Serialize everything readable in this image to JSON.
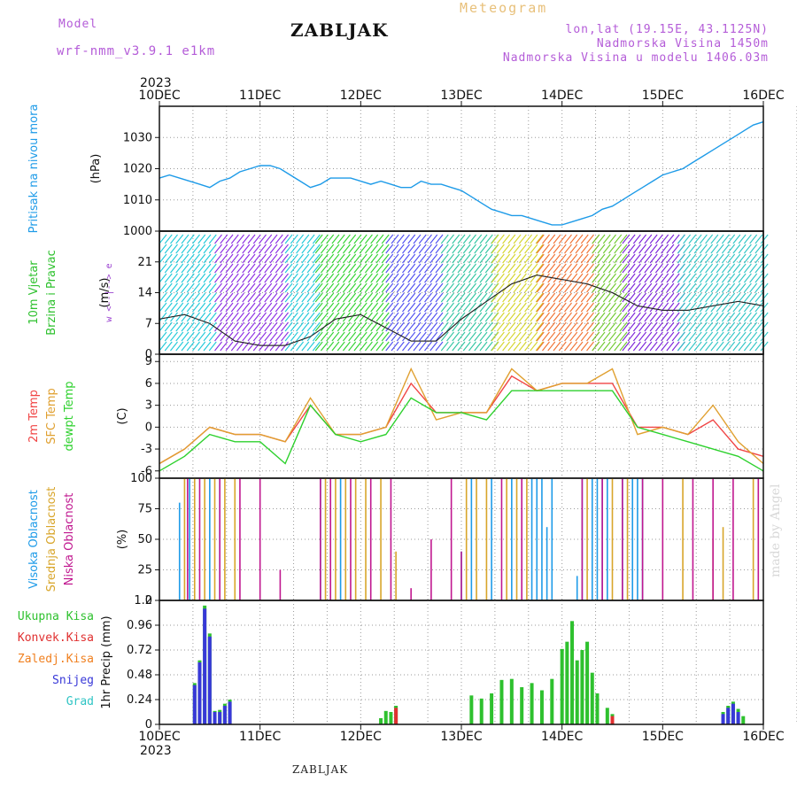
{
  "header": {
    "model_label": "Model",
    "model_name": "wrf-nmm_v3.9.1 e1km",
    "station": "ZABLJAK",
    "product": "Meteogram",
    "location": "lon,lat (19.15E, 43.1125N)",
    "elevation": "Nadmorska Visina 1450m",
    "model_elevation": "Nadmorska Visina u modelu 1406.03m",
    "credit": "made by Angel",
    "footer_station": "ZABLJAK"
  },
  "colors": {
    "pressure": "#1e9be8",
    "temp2m": "#f04545",
    "sfc": "#e0a030",
    "dewpt": "#2ed12e",
    "high_cloud": "#1e9be8",
    "mid_cloud": "#d8a52a",
    "low_cloud": "#c0178f",
    "precip_total": "#2ec12e",
    "precip_conv": "#e03030",
    "precip_ice": "#f08020",
    "precip_snow": "#3838d8",
    "precip_grad": "#2ec4c4"
  },
  "chart_data": [
    {
      "panel": "pressure",
      "type": "line",
      "year": "2023",
      "x_tick_labels": [
        "10DEC",
        "11DEC",
        "12DEC",
        "13DEC",
        "14DEC",
        "15DEC",
        "16DEC"
      ],
      "ylabel_lines": [
        "Pritisak na nivou mora",
        "(hPa)"
      ],
      "ylim": [
        1000,
        1040
      ],
      "yticks": [
        1000,
        1010,
        1020,
        1030
      ],
      "grid": true,
      "series": [
        {
          "x": [
            0,
            0.1,
            0.2,
            0.3,
            0.4,
            0.5,
            0.6,
            0.7,
            0.8,
            0.9,
            1.0,
            1.1,
            1.2,
            1.3,
            1.4,
            1.5,
            1.6,
            1.7,
            1.8,
            1.9,
            2.0,
            2.1,
            2.2,
            2.3,
            2.4,
            2.5,
            2.6,
            2.7,
            2.8,
            2.9,
            3.0,
            3.1,
            3.2,
            3.3,
            3.4,
            3.5,
            3.6,
            3.7,
            3.8,
            3.9,
            4.0,
            4.1,
            4.2,
            4.3,
            4.4,
            4.5,
            4.6,
            4.7,
            4.8,
            4.9,
            5.0,
            5.1,
            5.2,
            5.3,
            5.4,
            5.5,
            5.6,
            5.7,
            5.8,
            5.9,
            6.0
          ],
          "y": [
            1017,
            1018,
            1017,
            1016,
            1015,
            1014,
            1016,
            1017,
            1019,
            1020,
            1021,
            1021,
            1020,
            1018,
            1016,
            1014,
            1015,
            1017,
            1017,
            1017,
            1016,
            1015,
            1016,
            1015,
            1014,
            1014,
            1016,
            1015,
            1015,
            1014,
            1013,
            1011,
            1009,
            1007,
            1006,
            1005,
            1005,
            1004,
            1003,
            1002,
            1002,
            1003,
            1004,
            1005,
            1007,
            1008,
            1010,
            1012,
            1014,
            1016,
            1018,
            1019,
            1020,
            1022,
            1024,
            1026,
            1028,
            1030,
            1032,
            1034,
            1035
          ]
        }
      ]
    },
    {
      "panel": "wind",
      "type": "line",
      "ylabel_lines": [
        "10m Vjetar",
        "Brzina i Pravac",
        "(m/s)"
      ],
      "direction_legend": "w <--|--> e",
      "ylim": [
        0,
        28
      ],
      "yticks": [
        0,
        7,
        14,
        21
      ],
      "grid": true,
      "series": [
        {
          "name": "brzina",
          "x": [
            0,
            0.25,
            0.5,
            0.75,
            1.0,
            1.25,
            1.5,
            1.75,
            2.0,
            2.25,
            2.5,
            2.75,
            3.0,
            3.25,
            3.5,
            3.75,
            4.0,
            4.25,
            4.5,
            4.75,
            5.0,
            5.25,
            5.5,
            5.75,
            6.0
          ],
          "y": [
            8,
            9,
            7,
            3,
            2,
            2,
            4,
            8,
            9,
            6,
            3,
            3,
            8,
            12,
            16,
            18,
            17,
            16,
            14,
            11,
            10,
            10,
            11,
            12,
            11
          ]
        }
      ]
    },
    {
      "panel": "temperature",
      "type": "line",
      "ylabel_lines": [
        "2m Temp",
        "SFC Temp",
        "dewpt Temp",
        "(C)"
      ],
      "ylim": [
        -7,
        10
      ],
      "yticks": [
        -6,
        -3,
        0,
        3,
        6,
        9
      ],
      "grid": true,
      "series": [
        {
          "key": "temp2m",
          "x": [
            0,
            0.25,
            0.5,
            0.75,
            1.0,
            1.25,
            1.5,
            1.75,
            2.0,
            2.25,
            2.5,
            2.75,
            3.0,
            3.25,
            3.5,
            3.75,
            4.0,
            4.25,
            4.5,
            4.75,
            5.0,
            5.25,
            5.5,
            5.75,
            6.0
          ],
          "y": [
            -5,
            -3,
            0,
            -1,
            -1,
            -2,
            3,
            -1,
            -1,
            0,
            6,
            2,
            2,
            2,
            7,
            5,
            6,
            6,
            6,
            0,
            0,
            -1,
            1,
            -3,
            -4
          ]
        },
        {
          "key": "sfc",
          "x": [
            0,
            0.25,
            0.5,
            0.75,
            1.0,
            1.25,
            1.5,
            1.75,
            2.0,
            2.25,
            2.5,
            2.75,
            3.0,
            3.25,
            3.5,
            3.75,
            4.0,
            4.25,
            4.5,
            4.75,
            5.0,
            5.25,
            5.5,
            5.75,
            6.0
          ],
          "y": [
            -5,
            -3,
            0,
            -1,
            -1,
            -2,
            4,
            -1,
            -1,
            0,
            8,
            1,
            2,
            2,
            8,
            5,
            6,
            6,
            8,
            -1,
            0,
            -1,
            3,
            -2,
            -5
          ]
        },
        {
          "key": "dewpt",
          "x": [
            0,
            0.25,
            0.5,
            0.75,
            1.0,
            1.25,
            1.5,
            1.75,
            2.0,
            2.25,
            2.5,
            2.75,
            3.0,
            3.25,
            3.5,
            3.75,
            4.0,
            4.25,
            4.5,
            4.75,
            5.0,
            5.25,
            5.5,
            5.75,
            6.0
          ],
          "y": [
            -6,
            -4,
            -1,
            -2,
            -2,
            -5,
            3,
            -1,
            -2,
            -1,
            4,
            2,
            2,
            1,
            5,
            5,
            5,
            5,
            5,
            0,
            -1,
            -2,
            -3,
            -4,
            -6
          ]
        }
      ]
    },
    {
      "panel": "cloud",
      "type": "bar",
      "ylabel_lines": [
        "Visoka Oblacnost",
        "Srednja Oblacnost",
        "Niska Oblacnost",
        "(%)"
      ],
      "ylim": [
        0,
        100
      ],
      "yticks": [
        0,
        25,
        50,
        75,
        100
      ],
      "grid": true,
      "series": [
        {
          "key": "high_cloud",
          "x": [
            0.2,
            0.3,
            0.5,
            0.6,
            1.6,
            1.8,
            3.0,
            3.1,
            3.3,
            3.5,
            3.7,
            3.75,
            3.8,
            3.85,
            3.9,
            4.15,
            4.2,
            4.3,
            4.35,
            4.4,
            4.45,
            4.6,
            4.7,
            4.75,
            4.8
          ],
          "y": [
            80,
            100,
            100,
            100,
            100,
            100,
            40,
            100,
            100,
            100,
            100,
            100,
            100,
            60,
            100,
            20,
            100,
            100,
            100,
            100,
            100,
            100,
            100,
            100,
            100
          ]
        },
        {
          "key": "mid_cloud",
          "x": [
            0.25,
            0.35,
            0.45,
            0.55,
            0.65,
            0.75,
            1.65,
            1.75,
            1.85,
            1.95,
            2.05,
            2.2,
            2.35,
            3.05,
            3.15,
            3.25,
            3.45,
            3.55,
            3.65,
            4.25,
            4.5,
            4.65,
            5.2,
            5.5,
            5.6,
            5.9
          ],
          "y": [
            100,
            100,
            100,
            100,
            100,
            100,
            100,
            100,
            100,
            100,
            100,
            100,
            40,
            100,
            100,
            100,
            100,
            100,
            100,
            100,
            100,
            100,
            100,
            50,
            60,
            100
          ]
        },
        {
          "key": "low_cloud",
          "x": [
            0.28,
            0.4,
            0.6,
            0.8,
            1.0,
            1.2,
            1.6,
            1.7,
            1.9,
            2.1,
            2.3,
            2.5,
            2.7,
            2.9,
            3.0,
            3.4,
            3.6,
            4.2,
            4.4,
            4.6,
            4.8,
            5.0,
            5.3,
            5.5,
            5.7,
            5.95
          ],
          "y": [
            100,
            100,
            100,
            100,
            100,
            25,
            100,
            100,
            100,
            100,
            100,
            10,
            50,
            100,
            40,
            100,
            100,
            100,
            100,
            100,
            100,
            100,
            100,
            100,
            100,
            100
          ]
        }
      ]
    },
    {
      "panel": "precipitation",
      "type": "bar",
      "ylabel_lines": [
        "Ukupna Kisa",
        "Konvek.Kisa",
        "Zaledj.Kisa",
        "Snijeg",
        "Grad",
        "1hr Precip (mm)"
      ],
      "ylim": [
        0,
        1.2
      ],
      "yticks": [
        0,
        0.24,
        0.48,
        0.72,
        0.96,
        1.2
      ],
      "grid": true,
      "series": [
        {
          "key": "precip_total",
          "x": [
            0.35,
            0.4,
            0.45,
            0.5,
            0.55,
            0.6,
            0.65,
            0.7,
            2.2,
            2.25,
            2.3,
            2.35,
            3.1,
            3.2,
            3.3,
            3.4,
            3.5,
            3.6,
            3.7,
            3.8,
            3.9,
            4.0,
            4.05,
            4.1,
            4.15,
            4.2,
            4.25,
            4.3,
            4.35,
            4.45,
            4.5,
            5.6,
            5.65,
            5.7,
            5.75,
            5.8
          ],
          "y": [
            0.4,
            0.62,
            1.15,
            0.88,
            0.13,
            0.14,
            0.2,
            0.24,
            0.06,
            0.13,
            0.12,
            0.18,
            0.28,
            0.25,
            0.3,
            0.43,
            0.44,
            0.36,
            0.4,
            0.33,
            0.44,
            0.73,
            0.8,
            1.0,
            0.62,
            0.72,
            0.8,
            0.5,
            0.3,
            0.16,
            0.1,
            0.12,
            0.18,
            0.22,
            0.15,
            0.08
          ]
        },
        {
          "key": "precip_snow",
          "x": [
            0.35,
            0.4,
            0.45,
            0.5,
            0.55,
            0.6,
            0.65,
            0.7,
            5.6,
            5.65,
            5.7,
            5.75
          ],
          "y": [
            0.38,
            0.6,
            1.12,
            0.85,
            0.12,
            0.12,
            0.18,
            0.22,
            0.1,
            0.16,
            0.2,
            0.12
          ]
        },
        {
          "key": "precip_conv",
          "x": [
            2.35,
            4.5
          ],
          "y": [
            0.16,
            0.08
          ]
        }
      ]
    }
  ]
}
